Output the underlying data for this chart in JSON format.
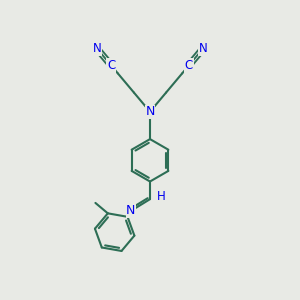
{
  "background_color": "#e8eae5",
  "bond_color": "#2d6e55",
  "atom_color": "#0000ee",
  "line_width": 1.5,
  "figsize": [
    3.0,
    3.0
  ],
  "dpi": 100,
  "xlim": [
    0,
    10
  ],
  "ylim": [
    0,
    10
  ]
}
